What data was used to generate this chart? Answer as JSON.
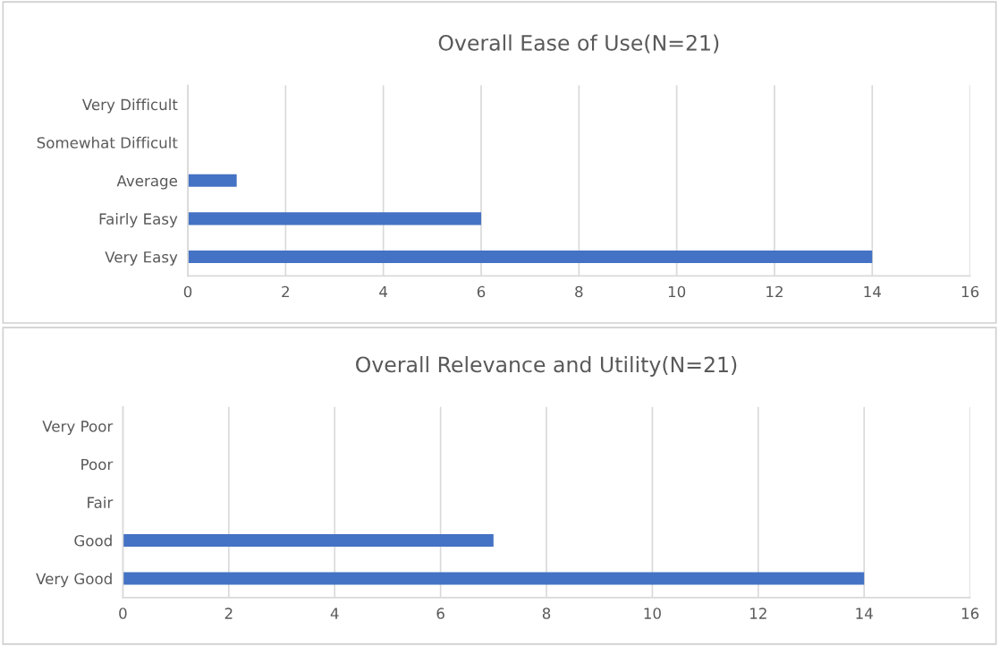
{
  "chart_data": [
    {
      "type": "bar",
      "orientation": "horizontal",
      "title": "Overall Ease of Use(N=21)",
      "categories": [
        "Very Difficult",
        "Somewhat Difficult",
        "Average",
        "Fairly Easy",
        "Very Easy"
      ],
      "values": [
        0,
        0,
        1,
        6,
        14
      ],
      "color": "#4472c4",
      "xlim": [
        0,
        16
      ],
      "xticks": [
        0,
        2,
        4,
        6,
        8,
        10,
        12,
        14,
        16
      ],
      "grid": "x"
    },
    {
      "type": "bar",
      "orientation": "horizontal",
      "title": "Overall Relevance and Utility(N=21)",
      "categories": [
        "Very Poor",
        "Poor",
        "Fair",
        "Good",
        "Very Good"
      ],
      "values": [
        0,
        0,
        0,
        7,
        14
      ],
      "color": "#4472c4",
      "xlim": [
        0,
        16
      ],
      "xticks": [
        0,
        2,
        4,
        6,
        8,
        10,
        12,
        14,
        16
      ],
      "grid": "x"
    }
  ]
}
